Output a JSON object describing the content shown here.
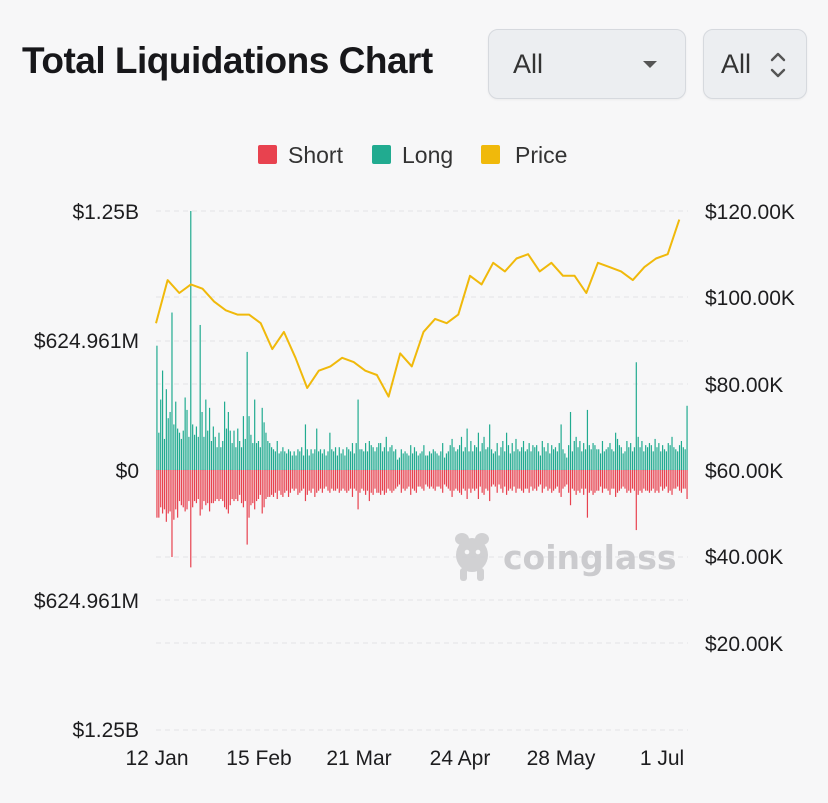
{
  "header": {
    "title": "Total Liquidations Chart",
    "select_exchange": "All",
    "select_range": "All"
  },
  "watermark": "coinglass",
  "colors": {
    "short": "#e8424f",
    "long": "#21ab90",
    "price": "#f0b90b",
    "grid": "#e3e3e6"
  },
  "chart_data": {
    "type": "bar",
    "title": "Total Liquidations Chart",
    "legend": {
      "placement": "top-center",
      "entries": [
        "Short",
        "Long",
        "Price"
      ]
    },
    "grid": true,
    "x_tick_labels": [
      "12 Jan",
      "15 Feb",
      "21 Mar",
      "24 Apr",
      "28 May",
      "1 Jul"
    ],
    "y_left_tick_labels": [
      "$1.25B",
      "$624.961M",
      "$0",
      "$624.961M",
      "$1.25B"
    ],
    "y_right_tick_labels": [
      "$120.00K",
      "$100.00K",
      "$80.00K",
      "$60.00K",
      "$40.00K",
      "$20.00K"
    ],
    "y_left_range_usd_millions": [
      -1250,
      1250
    ],
    "y_right_range_usd_thousands": [
      20,
      120
    ],
    "x_start_date": "2025-01-12",
    "x_end_date": "2025-07-14",
    "bar_interval_days": 2,
    "series": [
      {
        "name": "Long",
        "unit": "USD millions",
        "values": [
          600,
          180,
          340,
          480,
          150,
          390,
          250,
          280,
          760,
          220,
          330,
          200,
          180,
          150,
          190,
          350,
          290,
          160,
          1250,
          220,
          170,
          210,
          160,
          700,
          280,
          160,
          340,
          190,
          300,
          140,
          210,
          160,
          110,
          180,
          110,
          140,
          330,
          200,
          280,
          190,
          130,
          190,
          110,
          200,
          140,
          110,
          260,
          150,
          570,
          260,
          170,
          130,
          340,
          130,
          140,
          110,
          300,
          230,
          180,
          140,
          130,
          110,
          100,
          90,
          140,
          80,
          90,
          110,
          90,
          80,
          100,
          90,
          70,
          90,
          70,
          100,
          90,
          110,
          70,
          220,
          100,
          70,
          100,
          80,
          100,
          200,
          90,
          100,
          80,
          100,
          70,
          90,
          180,
          100,
          90,
          110,
          70,
          110,
          80,
          100,
          70,
          110,
          100,
          90,
          130,
          80,
          130,
          340,
          100,
          100,
          90,
          130,
          90,
          140,
          120,
          110,
          90,
          110,
          130,
          130,
          90,
          110,
          160,
          90,
          110,
          120,
          90,
          100,
          50,
          60,
          100,
          80,
          90,
          80,
          70,
          120,
          80,
          110,
          90,
          70,
          80,
          90,
          120,
          70,
          70,
          90,
          80,
          100,
          90,
          80,
          70,
          90,
          130,
          60,
          80,
          90,
          120,
          150,
          110,
          90,
          100,
          120,
          160,
          90,
          110,
          200,
          90,
          140,
          90,
          120,
          110,
          180,
          90,
          130,
          160,
          100,
          110,
          220,
          100,
          80,
          90,
          130,
          70,
          110,
          140,
          90,
          180,
          120,
          80,
          130,
          90,
          150,
          100,
          90,
          110,
          140,
          90,
          100,
          130,
          90,
          120,
          110,
          120,
          90,
          70,
          140,
          110,
          90,
          130,
          80,
          120,
          100,
          110,
          90,
          130,
          220,
          100,
          80,
          60,
          120,
          280,
          90,
          140,
          160,
          110,
          140,
          90,
          130,
          100,
          290,
          120,
          100,
          130,
          120,
          100,
          100,
          80,
          140,
          90,
          100,
          110,
          130,
          100,
          90,
          180,
          150,
          120,
          110,
          80,
          90,
          140,
          110,
          130,
          90,
          110,
          520,
          160,
          110,
          140,
          90,
          120,
          110,
          130,
          120,
          90,
          150,
          110,
          130,
          90,
          120,
          100,
          90,
          130,
          120,
          160,
          110,
          100,
          90,
          120,
          140,
          110,
          100,
          310
        ]
      },
      {
        "name": "Short",
        "unit": "USD millions",
        "values": [
          230,
          230,
          180,
          210,
          190,
          250,
          210,
          200,
          420,
          240,
          190,
          230,
          150,
          170,
          180,
          200,
          190,
          150,
          470,
          180,
          150,
          160,
          140,
          220,
          190,
          150,
          170,
          160,
          200,
          160,
          160,
          150,
          140,
          150,
          140,
          150,
          180,
          190,
          210,
          170,
          140,
          150,
          140,
          150,
          120,
          160,
          180,
          150,
          360,
          230,
          170,
          160,
          190,
          150,
          140,
          120,
          210,
          180,
          140,
          130,
          130,
          120,
          130,
          110,
          140,
          100,
          120,
          130,
          110,
          100,
          130,
          110,
          90,
          100,
          90,
          120,
          110,
          100,
          90,
          150,
          120,
          100,
          110,
          90,
          130,
          110,
          100,
          90,
          110,
          90,
          80,
          100,
          110,
          90,
          100,
          100,
          90,
          110,
          100,
          90,
          100,
          110,
          100,
          90,
          130,
          90,
          100,
          190,
          110,
          90,
          100,
          120,
          100,
          150,
          110,
          120,
          90,
          110,
          110,
          120,
          100,
          120,
          110,
          90,
          100,
          110,
          100,
          90,
          80,
          70,
          110,
          90,
          100,
          90,
          80,
          120,
          90,
          100,
          110,
          80,
          80,
          90,
          100,
          70,
          80,
          90,
          80,
          90,
          100,
          80,
          80,
          90,
          110,
          70,
          80,
          90,
          100,
          130,
          100,
          90,
          100,
          110,
          120,
          90,
          100,
          140,
          90,
          110,
          90,
          100,
          90,
          140,
          80,
          110,
          120,
          90,
          100,
          150,
          80,
          70,
          80,
          110,
          70,
          90,
          110,
          80,
          120,
          100,
          90,
          100,
          80,
          110,
          90,
          90,
          100,
          110,
          90,
          90,
          110,
          80,
          100,
          90,
          100,
          80,
          70,
          110,
          90,
          80,
          100,
          90,
          110,
          100,
          90,
          80,
          110,
          130,
          90,
          80,
          70,
          110,
          170,
          90,
          100,
          120,
          100,
          110,
          90,
          120,
          90,
          230,
          110,
          100,
          120,
          110,
          100,
          100,
          80,
          110,
          90,
          90,
          100,
          120,
          90,
          90,
          130,
          110,
          100,
          90,
          80,
          90,
          110,
          100,
          110,
          90,
          100,
          290,
          120,
          100,
          110,
          90,
          100,
          100,
          110,
          100,
          90,
          110,
          100,
          110,
          80,
          100,
          90,
          80,
          110,
          100,
          120,
          90,
          90,
          80,
          100,
          110,
          90,
          90,
          140
        ]
      },
      {
        "name": "Price",
        "unit": "USD thousands",
        "x_days": [
          0,
          4,
          8,
          12,
          16,
          20,
          24,
          28,
          32,
          36,
          40,
          44,
          48,
          52,
          56,
          60,
          64,
          68,
          72,
          76,
          80,
          84,
          88,
          92,
          96,
          100,
          104,
          108,
          112,
          116,
          120,
          124,
          128,
          132,
          136,
          140,
          144,
          148,
          152,
          156,
          160,
          164,
          168,
          172,
          176,
          180
        ],
        "values": [
          94,
          104,
          101,
          103,
          102,
          99,
          97,
          96,
          96,
          94,
          88,
          92,
          86,
          79,
          83,
          84,
          86,
          85,
          83,
          82,
          77,
          87,
          84,
          92,
          95,
          94,
          96,
          105,
          103,
          108,
          106,
          109,
          110,
          106,
          108,
          105,
          105,
          101,
          108,
          107,
          106,
          104,
          107,
          109,
          110,
          118
        ]
      }
    ]
  }
}
